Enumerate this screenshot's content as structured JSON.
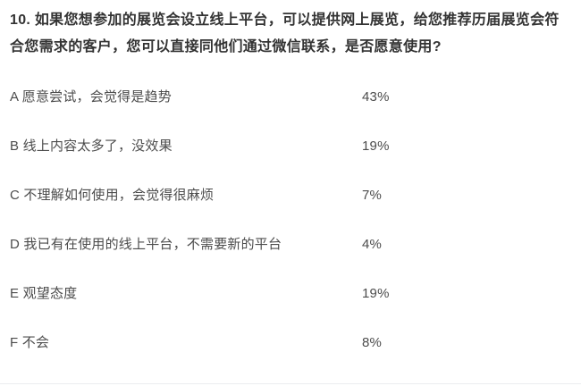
{
  "question": {
    "text": "10. 如果您想参加的展览会设立线上平台，可以提供网上展览，给您推荐历届展览会符合您需求的客户，您可以直接同他们通过微信联系，是否愿意使用?"
  },
  "options": [
    {
      "label": "A 愿意尝试，会觉得是趋势",
      "percent": "43%"
    },
    {
      "label": "B 线上内容太多了，没效果",
      "percent": "19%"
    },
    {
      "label": "C 不理解如何使用，会觉得很麻烦",
      "percent": "7%"
    },
    {
      "label": "D 我已有在使用的线上平台，不需要新的平台",
      "percent": "4%"
    },
    {
      "label": "E 观望态度",
      "percent": "19%"
    },
    {
      "label": "F 不会",
      "percent": "8%"
    }
  ],
  "chart_data": {
    "type": "table",
    "title": "10. 如果您想参加的展览会设立线上平台，可以提供网上展览，给您推荐历届展览会符合您需求的客户，您可以直接同他们通过微信联系，是否愿意使用?",
    "categories": [
      "A 愿意尝试，会觉得是趋势",
      "B 线上内容太多了，没效果",
      "C 不理解如何使用，会觉得很麻烦",
      "D 我已有在使用的线上平台，不需要新的平台",
      "E 观望态度",
      "F 不会"
    ],
    "values": [
      43,
      19,
      7,
      4,
      19,
      8
    ],
    "unit": "%"
  },
  "colors": {
    "background": "#ffffff",
    "question_text": "#333333",
    "option_text": "#4c4c4c",
    "divider": "#ebedf0"
  }
}
